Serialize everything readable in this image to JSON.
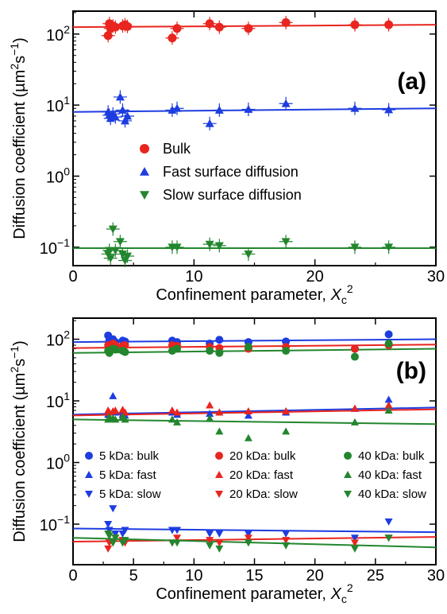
{
  "chart_data": [
    {
      "type": "scatter",
      "panel_label": "(a)",
      "xlabel": "Confinement  parameter, Xc²",
      "xlabel_parts": {
        "prefix": "Confinement  parameter, ",
        "var": "X",
        "sub": "c",
        "sup": "2"
      },
      "ylabel": "Diffusion coefficient (µm²s⁻¹)",
      "ylabel_parts": {
        "prefix": "Diffusion coefficient (µm",
        "sup1": "2",
        "mid": "s",
        "sup2": "−1",
        "suffix": ")"
      },
      "xlim": [
        0,
        30
      ],
      "ylim": [
        0.055,
        210
      ],
      "yscale": "log",
      "x_ticks": [
        "0",
        "10",
        "20",
        "30"
      ],
      "y_ticks": [
        {
          "value": 0.1,
          "mant": "10",
          "exp": "−1"
        },
        {
          "value": 1,
          "mant": "10",
          "exp": "0"
        },
        {
          "value": 10,
          "mant": "10",
          "exp": "1"
        },
        {
          "value": 100,
          "mant": "10",
          "exp": "2"
        }
      ],
      "legend_position": "center-left",
      "series": [
        {
          "name": "Bulk",
          "marker": "circle",
          "color": "#e8251f",
          "x": [
            2.9,
            3.0,
            3.1,
            3.3,
            3.5,
            4.1,
            4.3,
            4.5,
            8.2,
            8.6,
            11.3,
            12.1,
            14.5,
            17.6,
            23.3,
            26.1
          ],
          "y": [
            95,
            140,
            120,
            130,
            125,
            130,
            135,
            128,
            88,
            120,
            140,
            125,
            120,
            145,
            135,
            135
          ],
          "fit": [
            125,
            135
          ]
        },
        {
          "name": "Fast surface diffusion",
          "marker": "triangle-up",
          "color": "#1d3de0",
          "x": [
            2.9,
            3.0,
            3.1,
            3.3,
            3.5,
            3.9,
            4.1,
            4.3,
            4.5,
            8.2,
            8.6,
            11.3,
            12.1,
            14.5,
            17.6,
            23.3,
            26.1
          ],
          "y": [
            8.0,
            7.2,
            6.5,
            7.5,
            6.8,
            13.0,
            8.5,
            6.0,
            7.0,
            8.5,
            9.0,
            5.5,
            8.5,
            8.7,
            10.5,
            9.0,
            8.6
          ],
          "fit": [
            8.0,
            9.0
          ]
        },
        {
          "name": "Slow surface diffusion",
          "marker": "triangle-down",
          "color": "#23862e",
          "x": [
            2.9,
            3.0,
            3.1,
            3.3,
            3.5,
            3.9,
            4.1,
            4.3,
            4.5,
            8.2,
            8.6,
            11.3,
            12.1,
            14.5,
            17.6,
            23.3,
            26.1
          ],
          "y": [
            0.08,
            0.09,
            0.07,
            0.18,
            0.09,
            0.12,
            0.08,
            0.065,
            0.075,
            0.1,
            0.1,
            0.11,
            0.105,
            0.08,
            0.12,
            0.1,
            0.1
          ],
          "fit": [
            0.097,
            0.097
          ]
        }
      ]
    },
    {
      "type": "scatter",
      "panel_label": "(b)",
      "xlabel": "Confinement  parameter, Xc²",
      "xlabel_parts": {
        "prefix": "Confinement  parameter, ",
        "var": "X",
        "sub": "c",
        "sup": "2"
      },
      "ylabel": "Diffusion coefficient (µm²s⁻¹)",
      "ylabel_parts": {
        "prefix": "Diffusion coefficient (µm",
        "sup1": "2",
        "mid": "s",
        "sup2": "−1",
        "suffix": ")"
      },
      "xlim": [
        0,
        30
      ],
      "ylim": [
        0.022,
        220
      ],
      "yscale": "log",
      "x_ticks": [
        "0",
        "5",
        "10",
        "15",
        "20",
        "25",
        "30"
      ],
      "y_ticks": [
        {
          "value": 0.1,
          "mant": "10",
          "exp": "−1"
        },
        {
          "value": 1,
          "mant": "10",
          "exp": "0"
        },
        {
          "value": 10,
          "mant": "10",
          "exp": "1"
        },
        {
          "value": 100,
          "mant": "10",
          "exp": "2"
        }
      ],
      "legend_position": "lower-center",
      "x": [
        2.9,
        3.0,
        3.3,
        3.5,
        4.1,
        4.3,
        8.2,
        8.6,
        11.3,
        12.1,
        14.5,
        17.6,
        23.3,
        26.1
      ],
      "series": [
        {
          "name": "5 kDa: bulk",
          "marker": "circle",
          "color": "#1d3de0",
          "y": [
            115,
            95,
            100,
            90,
            95,
            92,
            95,
            90,
            85,
            98,
            90,
            92,
            70,
            120
          ],
          "fit": [
            90,
            100
          ]
        },
        {
          "name": "20 kDa: bulk",
          "marker": "circle",
          "color": "#e8251f",
          "y": [
            80,
            75,
            85,
            80,
            78,
            80,
            80,
            78,
            75,
            72,
            70,
            75,
            70,
            80
          ],
          "fit": [
            72,
            82
          ]
        },
        {
          "name": "40 kDa: bulk",
          "marker": "circle",
          "color": "#23862e",
          "y": [
            65,
            60,
            70,
            68,
            65,
            62,
            65,
            70,
            65,
            60,
            75,
            65,
            52,
            85
          ],
          "fit": [
            60,
            70
          ]
        },
        {
          "name": "5 kDa: fast",
          "marker": "triangle-up",
          "color": "#1d3de0",
          "y": [
            6.0,
            5.5,
            12.0,
            6.5,
            6.0,
            5.8,
            6.5,
            6.0,
            6.2,
            6.5,
            5.8,
            6.5,
            7.5,
            10.5
          ],
          "fit": [
            6.0,
            7.8
          ]
        },
        {
          "name": "20 kDa: fast",
          "marker": "triangle-up",
          "color": "#e8251f",
          "y": [
            7.0,
            6.5,
            6.8,
            7.0,
            7.2,
            6.5,
            7.0,
            6.5,
            8.5,
            6.5,
            6.8,
            6.8,
            7.5,
            8.5
          ],
          "fit": [
            5.8,
            7.3
          ]
        },
        {
          "name": "40 kDa: fast",
          "marker": "triangle-up",
          "color": "#23862e",
          "y": [
            5.0,
            5.5,
            5.2,
            5.0,
            5.5,
            5.0,
            5.0,
            4.5,
            5.2,
            3.2,
            2.5,
            3.2,
            4.5,
            7.0
          ],
          "fit": [
            5.0,
            4.2
          ]
        },
        {
          "name": "5 kDa: slow",
          "marker": "triangle-down",
          "color": "#1d3de0",
          "y": [
            0.1,
            0.08,
            0.18,
            0.07,
            0.07,
            0.08,
            0.08,
            0.08,
            0.07,
            0.07,
            0.07,
            0.07,
            0.06,
            0.11
          ],
          "fit": [
            0.085,
            0.074
          ]
        },
        {
          "name": "20 kDa: slow",
          "marker": "triangle-down",
          "color": "#e8251f",
          "y": [
            0.04,
            0.05,
            0.05,
            0.06,
            0.055,
            0.05,
            0.05,
            0.06,
            0.055,
            0.05,
            0.06,
            0.055,
            0.05,
            0.06
          ],
          "fit": [
            0.052,
            0.062
          ]
        },
        {
          "name": "40 kDa: slow",
          "marker": "triangle-down",
          "color": "#23862e",
          "y": [
            0.07,
            0.065,
            0.05,
            0.06,
            0.05,
            0.055,
            0.05,
            0.05,
            0.045,
            0.04,
            0.05,
            0.045,
            0.04,
            0.06
          ],
          "fit": [
            0.06,
            0.042
          ]
        }
      ]
    }
  ]
}
